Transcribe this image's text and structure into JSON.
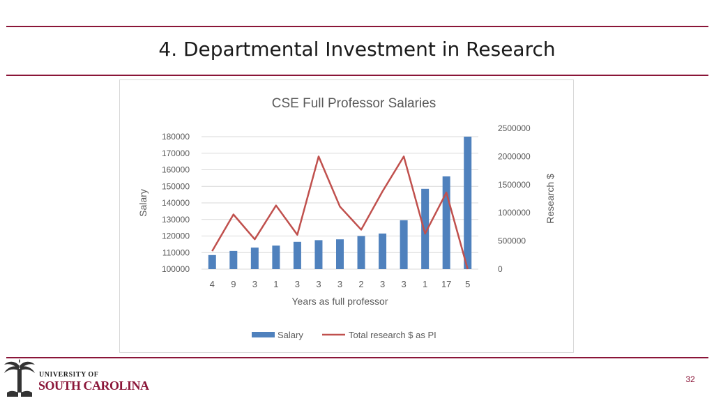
{
  "slide": {
    "title": "4.  Departmental Investment in Research",
    "page_number": "32"
  },
  "logo": {
    "line1": "UNIVERSITY OF",
    "line2": "SOUTH CAROLINA"
  },
  "colors": {
    "accent": "#8a1538",
    "bar": "#4f81bd",
    "line": "#c0504d"
  },
  "chart_data": {
    "type": "bar",
    "title": "CSE Full Professor Salaries",
    "xlabel": "Years as full professor",
    "ylabel": "Salary",
    "y2label": "Research $",
    "categories": [
      "4",
      "9",
      "3",
      "1",
      "3",
      "3",
      "3",
      "2",
      "3",
      "3",
      "1",
      "17",
      "5"
    ],
    "ylim": [
      100000,
      180000
    ],
    "y_ticks": [
      "100000",
      "110000",
      "120000",
      "130000",
      "140000",
      "150000",
      "160000",
      "170000",
      "180000"
    ],
    "y2lim": [
      0,
      2500000
    ],
    "y2_ticks": [
      "0",
      "500000",
      "1000000",
      "1500000",
      "2000000",
      "2500000"
    ],
    "series": [
      {
        "name": "Salary",
        "type": "bar",
        "axis": "left",
        "values": [
          108500,
          111000,
          113000,
          114200,
          116500,
          117500,
          118000,
          120000,
          121500,
          129500,
          148500,
          156000,
          180000
        ]
      },
      {
        "name": "Total research $ as PI",
        "type": "line",
        "axis": "right",
        "values": [
          320000,
          970000,
          530000,
          1130000,
          610000,
          2000000,
          1110000,
          700000,
          1380000,
          2000000,
          630000,
          1360000,
          0
        ]
      }
    ],
    "grid": true,
    "legend": "bottom"
  }
}
